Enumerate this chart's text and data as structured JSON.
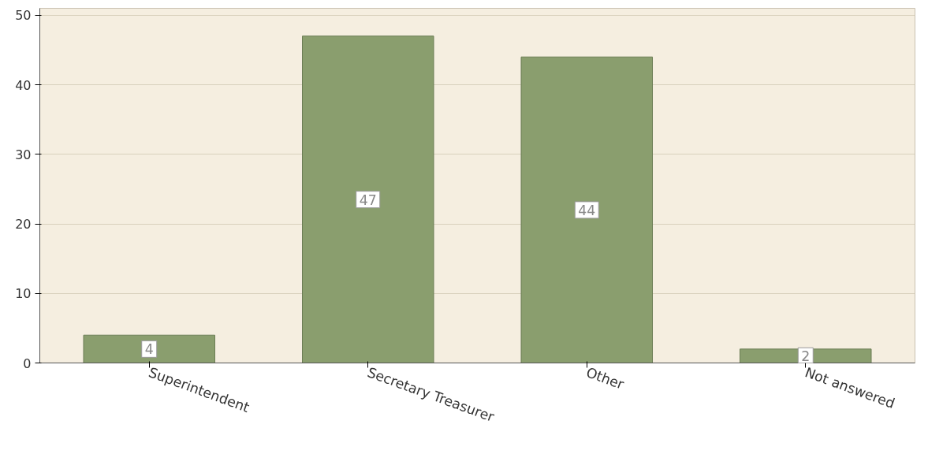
{
  "chart_data": {
    "type": "bar",
    "categories": [
      "Superintendent",
      "Secretary Treasurer",
      "Other",
      "Not answered"
    ],
    "values": [
      4,
      47,
      44,
      2
    ],
    "color": "#8a9e6e",
    "ylim": [
      0,
      51
    ],
    "yticks": [
      0,
      10,
      20,
      30,
      40,
      50
    ],
    "grid": "y",
    "data_labels": true
  }
}
